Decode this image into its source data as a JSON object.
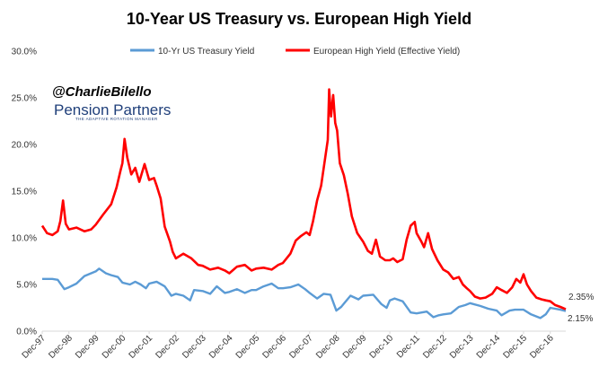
{
  "chart_data": {
    "type": "line",
    "title": "10-Year US Treasury vs. European High Yield",
    "xlabel": "",
    "ylabel": "",
    "ylim": [
      0,
      30
    ],
    "x_start_year": 1997.92,
    "x_end_year": 2017.5,
    "y_ticks": [
      {
        "value": 0,
        "label": "0.0%"
      },
      {
        "value": 5,
        "label": "5.0%"
      },
      {
        "value": 10,
        "label": "10.0%"
      },
      {
        "value": 15,
        "label": "15.0%"
      },
      {
        "value": 20,
        "label": "20.0%"
      },
      {
        "value": 25,
        "label": "25.0%"
      },
      {
        "value": 30,
        "label": "30.0%"
      }
    ],
    "x_ticks": [
      {
        "year": 1997.92,
        "label": "Dec-97"
      },
      {
        "year": 1998.92,
        "label": "Dec-98"
      },
      {
        "year": 1999.92,
        "label": "Dec-99"
      },
      {
        "year": 2000.92,
        "label": "Dec-00"
      },
      {
        "year": 2001.92,
        "label": "Dec-01"
      },
      {
        "year": 2002.92,
        "label": "Dec-02"
      },
      {
        "year": 2003.92,
        "label": "Dec-03"
      },
      {
        "year": 2004.92,
        "label": "Dec-04"
      },
      {
        "year": 2005.92,
        "label": "Dec-05"
      },
      {
        "year": 2006.92,
        "label": "Dec-06"
      },
      {
        "year": 2007.92,
        "label": "Dec-07"
      },
      {
        "year": 2008.92,
        "label": "Dec-08"
      },
      {
        "year": 2009.92,
        "label": "Dec-09"
      },
      {
        "year": 2010.92,
        "label": "Dec-10"
      },
      {
        "year": 2011.92,
        "label": "Dec-11"
      },
      {
        "year": 2012.92,
        "label": "Dec-12"
      },
      {
        "year": 2013.92,
        "label": "Dec-13"
      },
      {
        "year": 2014.92,
        "label": "Dec-14"
      },
      {
        "year": 2015.92,
        "label": "Dec-15"
      },
      {
        "year": 2016.92,
        "label": "Dec-16"
      }
    ],
    "series": [
      {
        "name": "10-Yr US Treasury Yield",
        "color": "#5b9bd5",
        "end_label": "2.15%",
        "points": [
          [
            1997.92,
            5.6
          ],
          [
            1998.1,
            5.6
          ],
          [
            1998.3,
            5.6
          ],
          [
            1998.5,
            5.5
          ],
          [
            1998.75,
            4.5
          ],
          [
            1998.92,
            4.7
          ],
          [
            1999.2,
            5.1
          ],
          [
            1999.5,
            5.9
          ],
          [
            1999.75,
            6.2
          ],
          [
            1999.92,
            6.4
          ],
          [
            2000.05,
            6.7
          ],
          [
            2000.3,
            6.2
          ],
          [
            2000.5,
            6.0
          ],
          [
            2000.75,
            5.8
          ],
          [
            2000.92,
            5.2
          ],
          [
            2001.2,
            5.0
          ],
          [
            2001.4,
            5.3
          ],
          [
            2001.6,
            5.0
          ],
          [
            2001.8,
            4.6
          ],
          [
            2001.92,
            5.1
          ],
          [
            2002.2,
            5.3
          ],
          [
            2002.5,
            4.8
          ],
          [
            2002.75,
            3.8
          ],
          [
            2002.92,
            4.0
          ],
          [
            2003.2,
            3.8
          ],
          [
            2003.45,
            3.3
          ],
          [
            2003.6,
            4.4
          ],
          [
            2003.92,
            4.3
          ],
          [
            2004.2,
            4.0
          ],
          [
            2004.45,
            4.8
          ],
          [
            2004.75,
            4.1
          ],
          [
            2004.92,
            4.2
          ],
          [
            2005.2,
            4.5
          ],
          [
            2005.5,
            4.1
          ],
          [
            2005.75,
            4.4
          ],
          [
            2005.92,
            4.4
          ],
          [
            2006.2,
            4.8
          ],
          [
            2006.5,
            5.1
          ],
          [
            2006.75,
            4.6
          ],
          [
            2006.92,
            4.6
          ],
          [
            2007.2,
            4.7
          ],
          [
            2007.5,
            5.0
          ],
          [
            2007.75,
            4.5
          ],
          [
            2007.92,
            4.1
          ],
          [
            2008.2,
            3.5
          ],
          [
            2008.45,
            4.0
          ],
          [
            2008.7,
            3.9
          ],
          [
            2008.92,
            2.2
          ],
          [
            2009.1,
            2.6
          ],
          [
            2009.45,
            3.8
          ],
          [
            2009.75,
            3.4
          ],
          [
            2009.92,
            3.8
          ],
          [
            2010.3,
            3.9
          ],
          [
            2010.6,
            2.9
          ],
          [
            2010.8,
            2.5
          ],
          [
            2010.92,
            3.3
          ],
          [
            2011.1,
            3.5
          ],
          [
            2011.4,
            3.2
          ],
          [
            2011.7,
            2.0
          ],
          [
            2011.92,
            1.9
          ],
          [
            2012.3,
            2.1
          ],
          [
            2012.55,
            1.5
          ],
          [
            2012.75,
            1.7
          ],
          [
            2012.92,
            1.8
          ],
          [
            2013.2,
            1.9
          ],
          [
            2013.5,
            2.6
          ],
          [
            2013.75,
            2.8
          ],
          [
            2013.92,
            3.0
          ],
          [
            2014.3,
            2.7
          ],
          [
            2014.6,
            2.4
          ],
          [
            2014.92,
            2.2
          ],
          [
            2015.1,
            1.7
          ],
          [
            2015.4,
            2.2
          ],
          [
            2015.6,
            2.3
          ],
          [
            2015.92,
            2.3
          ],
          [
            2016.2,
            1.8
          ],
          [
            2016.55,
            1.4
          ],
          [
            2016.75,
            1.8
          ],
          [
            2016.92,
            2.5
          ],
          [
            2017.1,
            2.4
          ],
          [
            2017.3,
            2.3
          ],
          [
            2017.5,
            2.15
          ]
        ]
      },
      {
        "name": "European High Yield (Effective Yield)",
        "color": "#ff0000",
        "end_label": "2.35%",
        "points": [
          [
            1997.92,
            11.3
          ],
          [
            1998.1,
            10.5
          ],
          [
            1998.3,
            10.3
          ],
          [
            1998.5,
            10.7
          ],
          [
            1998.6,
            11.8
          ],
          [
            1998.7,
            14.0
          ],
          [
            1998.8,
            11.5
          ],
          [
            1998.92,
            10.9
          ],
          [
            1999.2,
            11.1
          ],
          [
            1999.5,
            10.7
          ],
          [
            1999.75,
            10.9
          ],
          [
            1999.92,
            11.4
          ],
          [
            2000.2,
            12.5
          ],
          [
            2000.5,
            13.6
          ],
          [
            2000.7,
            15.4
          ],
          [
            2000.85,
            17.2
          ],
          [
            2000.92,
            18.0
          ],
          [
            2001.0,
            20.6
          ],
          [
            2001.1,
            18.6
          ],
          [
            2001.25,
            16.8
          ],
          [
            2001.4,
            17.5
          ],
          [
            2001.55,
            16.0
          ],
          [
            2001.75,
            17.9
          ],
          [
            2001.92,
            16.2
          ],
          [
            2002.1,
            16.4
          ],
          [
            2002.2,
            15.6
          ],
          [
            2002.35,
            14.2
          ],
          [
            2002.5,
            11.2
          ],
          [
            2002.7,
            9.6
          ],
          [
            2002.8,
            8.5
          ],
          [
            2002.92,
            7.8
          ],
          [
            2003.2,
            8.3
          ],
          [
            2003.5,
            7.8
          ],
          [
            2003.75,
            7.1
          ],
          [
            2003.92,
            7.0
          ],
          [
            2004.2,
            6.6
          ],
          [
            2004.5,
            6.8
          ],
          [
            2004.75,
            6.5
          ],
          [
            2004.92,
            6.2
          ],
          [
            2005.2,
            6.9
          ],
          [
            2005.5,
            7.1
          ],
          [
            2005.75,
            6.5
          ],
          [
            2005.92,
            6.7
          ],
          [
            2006.2,
            6.8
          ],
          [
            2006.5,
            6.6
          ],
          [
            2006.75,
            7.1
          ],
          [
            2006.92,
            7.3
          ],
          [
            2007.2,
            8.3
          ],
          [
            2007.4,
            9.7
          ],
          [
            2007.6,
            10.2
          ],
          [
            2007.8,
            10.6
          ],
          [
            2007.92,
            10.3
          ],
          [
            2008.05,
            11.8
          ],
          [
            2008.2,
            14.0
          ],
          [
            2008.35,
            15.6
          ],
          [
            2008.5,
            18.5
          ],
          [
            2008.6,
            20.5
          ],
          [
            2008.65,
            25.9
          ],
          [
            2008.72,
            23.0
          ],
          [
            2008.8,
            25.3
          ],
          [
            2008.88,
            22.3
          ],
          [
            2008.95,
            21.5
          ],
          [
            2009.05,
            18.0
          ],
          [
            2009.2,
            16.7
          ],
          [
            2009.35,
            14.7
          ],
          [
            2009.5,
            12.3
          ],
          [
            2009.7,
            10.5
          ],
          [
            2009.92,
            9.6
          ],
          [
            2010.1,
            8.6
          ],
          [
            2010.25,
            8.3
          ],
          [
            2010.4,
            9.8
          ],
          [
            2010.55,
            8.0
          ],
          [
            2010.75,
            7.6
          ],
          [
            2010.92,
            7.6
          ],
          [
            2011.05,
            7.8
          ],
          [
            2011.2,
            7.4
          ],
          [
            2011.4,
            7.7
          ],
          [
            2011.55,
            9.8
          ],
          [
            2011.7,
            11.3
          ],
          [
            2011.85,
            11.7
          ],
          [
            2011.92,
            10.5
          ],
          [
            2012.1,
            9.6
          ],
          [
            2012.2,
            9.0
          ],
          [
            2012.35,
            10.5
          ],
          [
            2012.5,
            8.8
          ],
          [
            2012.7,
            7.6
          ],
          [
            2012.92,
            6.6
          ],
          [
            2013.1,
            6.3
          ],
          [
            2013.3,
            5.6
          ],
          [
            2013.5,
            5.8
          ],
          [
            2013.65,
            5.0
          ],
          [
            2013.8,
            4.6
          ],
          [
            2013.92,
            4.3
          ],
          [
            2014.1,
            3.7
          ],
          [
            2014.3,
            3.5
          ],
          [
            2014.5,
            3.6
          ],
          [
            2014.75,
            4.0
          ],
          [
            2014.92,
            4.7
          ],
          [
            2015.1,
            4.4
          ],
          [
            2015.3,
            4.1
          ],
          [
            2015.5,
            4.7
          ],
          [
            2015.65,
            5.6
          ],
          [
            2015.8,
            5.2
          ],
          [
            2015.92,
            6.1
          ],
          [
            2016.05,
            5.0
          ],
          [
            2016.2,
            4.3
          ],
          [
            2016.4,
            3.6
          ],
          [
            2016.6,
            3.4
          ],
          [
            2016.75,
            3.3
          ],
          [
            2016.92,
            3.2
          ],
          [
            2017.1,
            2.8
          ],
          [
            2017.3,
            2.6
          ],
          [
            2017.5,
            2.35
          ]
        ]
      }
    ]
  },
  "watermark": {
    "handle": "@CharlieBilello",
    "brand": "Pension Partners",
    "tagline": "THE ADAPTIVE ROTATION MANAGER"
  }
}
